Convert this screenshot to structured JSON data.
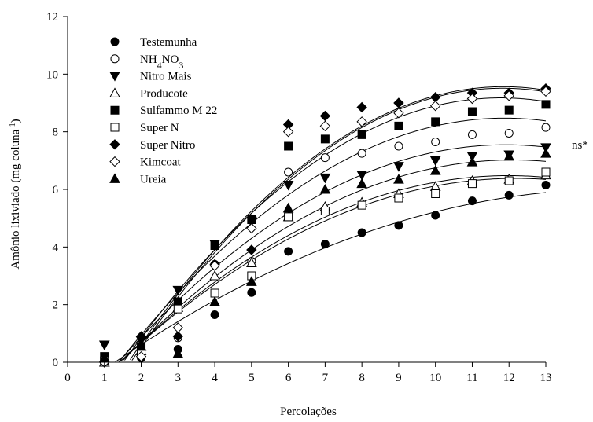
{
  "chart_data": {
    "type": "scatter",
    "title": "",
    "xlabel": "Percolações",
    "ylabel_parts": {
      "main": "Amônio lixiviado (mg coluna",
      "sup": "-1",
      "close": ")"
    },
    "xlim": [
      0,
      13
    ],
    "ylim": [
      0,
      12
    ],
    "xticks": [
      0,
      1,
      2,
      3,
      4,
      5,
      6,
      7,
      8,
      9,
      10,
      11,
      12,
      13
    ],
    "yticks": [
      0,
      2,
      4,
      6,
      8,
      10,
      12
    ],
    "grid": false,
    "legend_position": "top-left",
    "annotation": "ns*",
    "x": [
      1,
      2,
      3,
      4,
      5,
      6,
      7,
      8,
      9,
      10,
      11,
      12,
      13
    ],
    "series": [
      {
        "name": "Testemunha",
        "marker": "circle",
        "filled": true,
        "values": [
          0.0,
          0.15,
          0.45,
          1.65,
          2.42,
          3.85,
          4.1,
          4.5,
          4.75,
          5.1,
          5.6,
          5.8,
          6.15
        ],
        "fit": [
          -1.18,
          0.96,
          -0.032
        ]
      },
      {
        "name": "NH4NO3",
        "name_parts": [
          "NH",
          "4",
          "NO",
          "3"
        ],
        "marker": "circle",
        "filled": false,
        "values": [
          0.0,
          0.2,
          0.85,
          3.4,
          3.5,
          6.6,
          7.1,
          7.25,
          7.5,
          7.65,
          7.9,
          7.95,
          8.15
        ],
        "fit": [
          -2.4,
          1.83,
          -0.077
        ]
      },
      {
        "name": "Nitro Mais",
        "marker": "triangle-down",
        "filled": true,
        "values": [
          0.6,
          0.75,
          2.5,
          4.1,
          4.9,
          6.15,
          6.4,
          6.5,
          6.8,
          7.0,
          7.15,
          7.2,
          7.45
        ],
        "fit": [
          -2.1,
          1.62,
          -0.068
        ]
      },
      {
        "name": "Producote",
        "marker": "triangle-up",
        "filled": false,
        "values": [
          0.0,
          0.4,
          1.9,
          3.0,
          3.45,
          5.05,
          5.4,
          5.55,
          5.85,
          6.1,
          6.3,
          6.35,
          6.5
        ],
        "fit": [
          -1.85,
          1.39,
          -0.058
        ]
      },
      {
        "name": "Sulfammo M 22",
        "marker": "square",
        "filled": true,
        "values": [
          0.2,
          0.55,
          2.1,
          4.05,
          4.95,
          7.5,
          7.75,
          7.9,
          8.2,
          8.35,
          8.7,
          8.75,
          8.95
        ],
        "fit": [
          -2.9,
          2.05,
          -0.087
        ]
      },
      {
        "name": "Super N",
        "marker": "square",
        "filled": false,
        "values": [
          0.05,
          0.3,
          1.85,
          2.4,
          3.0,
          5.05,
          5.25,
          5.45,
          5.7,
          5.85,
          6.2,
          6.3,
          6.6
        ],
        "fit": [
          -1.78,
          1.34,
          -0.055
        ]
      },
      {
        "name": "Super Nitro",
        "marker": "diamond",
        "filled": true,
        "values": [
          0.0,
          0.9,
          0.9,
          3.4,
          3.9,
          8.25,
          8.55,
          8.85,
          9.0,
          9.2,
          9.35,
          9.35,
          9.5
        ],
        "fit": [
          -3.5,
          2.2,
          -0.093
        ]
      },
      {
        "name": "Kimcoat",
        "marker": "diamond",
        "filled": false,
        "values": [
          0.0,
          0.2,
          1.2,
          3.35,
          4.65,
          8.0,
          8.2,
          8.35,
          8.65,
          8.9,
          9.15,
          9.25,
          9.4
        ],
        "fit": [
          -3.35,
          2.18,
          -0.092
        ]
      },
      {
        "name": "Ureia",
        "marker": "triangle-up",
        "filled": true,
        "values": [
          0.15,
          0.55,
          0.3,
          2.1,
          2.8,
          5.35,
          6.0,
          6.2,
          6.35,
          6.65,
          6.95,
          7.15,
          7.25
        ],
        "fit": [
          -2.05,
          1.5,
          -0.062
        ]
      }
    ]
  }
}
